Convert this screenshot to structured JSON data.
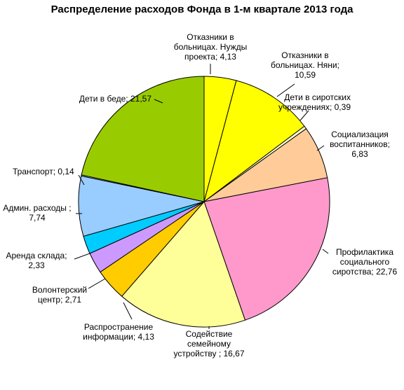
{
  "chart_data": {
    "type": "pie",
    "title": "Распределение расходов Фонда в 1-м квартале 2013 года",
    "start_angle_deg": 0,
    "slices": [
      {
        "label": "Отказники в больницах. Нужды проекта",
        "value": 4.13,
        "color": "#FFFF00",
        "label_lines": [
          "Отказники в",
          "больницах. Нужды",
          "проекта; 4,13"
        ]
      },
      {
        "label": "Отказники в больницах. Няни",
        "value": 10.59,
        "color": "#FFFF00",
        "label_lines": [
          "Отказники в",
          "больницах. Няни;",
          "10,59"
        ]
      },
      {
        "label": "Дети в сиротских учреждениях",
        "value": 0.39,
        "color": "#FFFFCC",
        "label_lines": [
          "Дети в сиротских",
          "учреждениях; 0,39"
        ]
      },
      {
        "label": "Социализация воспитанников",
        "value": 6.83,
        "color": "#FFCC99",
        "label_lines": [
          "Социализация",
          "воспитанников;",
          "6,83"
        ]
      },
      {
        "label": "Профилактика социального сиротства",
        "value": 22.76,
        "color": "#FF99CC",
        "label_lines": [
          "Профилактика",
          "социального",
          "сиротства; 22,76"
        ]
      },
      {
        "label": "Содействие семейному устройству",
        "value": 16.67,
        "color": "#FFFF99",
        "label_lines": [
          "Содействие",
          "семейному",
          "устройству ; 16,67"
        ]
      },
      {
        "label": "Распространение информации",
        "value": 4.13,
        "color": "#FFCC00",
        "label_lines": [
          "Распространение",
          "информации; 4,13"
        ]
      },
      {
        "label": "Волонтерский центр",
        "value": 2.71,
        "color": "#CC99FF",
        "label_lines": [
          "Волонтерский",
          "центр; 2,71"
        ]
      },
      {
        "label": "Аренда склада",
        "value": 2.33,
        "color": "#00CCFF",
        "label_lines": [
          "Аренда склада;",
          "2,33"
        ]
      },
      {
        "label": "Админ. расходы",
        "value": 7.74,
        "color": "#99CCFF",
        "label_lines": [
          "Админ. расходы ;",
          "7,74"
        ]
      },
      {
        "label": "Транспорт",
        "value": 0.14,
        "color": "#CCFFFF",
        "label_lines": [
          "Транспорт; 0,14"
        ]
      },
      {
        "label": "Дети в беде",
        "value": 21.57,
        "color": "#99CC00",
        "label_lines": [
          "Дети в беде; 21,57"
        ]
      }
    ]
  }
}
